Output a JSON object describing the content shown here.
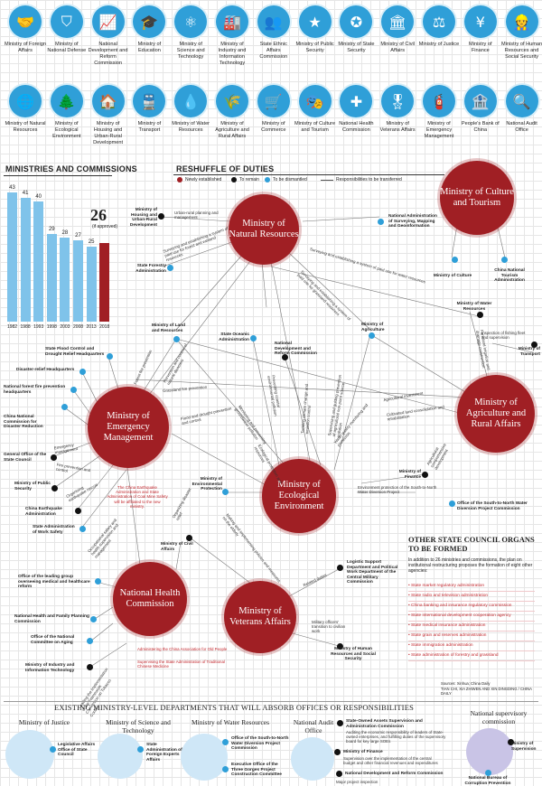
{
  "icons_row1": [
    {
      "label": "Ministry of Foreign Affairs",
      "icon": "handshake-icon",
      "glyph": "🤝"
    },
    {
      "label": "Ministry of National Defense",
      "icon": "shield-icon",
      "glyph": "⛉"
    },
    {
      "label": "National Development and Reform Commission",
      "icon": "growth-chart-icon",
      "glyph": "📈"
    },
    {
      "label": "Ministry of Education",
      "icon": "graduation-cap-icon",
      "glyph": "🎓"
    },
    {
      "label": "Ministry of Science and Technology",
      "icon": "atom-icon",
      "glyph": "⚛"
    },
    {
      "label": "Ministry of Industry and Information Technology",
      "icon": "factory-icon",
      "glyph": "🏭"
    },
    {
      "label": "State Ethnic Affairs Commission",
      "icon": "people-icon",
      "glyph": "👥"
    },
    {
      "label": "Ministry of Public Security",
      "icon": "police-badge-icon",
      "glyph": "★"
    },
    {
      "label": "Ministry of State Security",
      "icon": "security-badge-icon",
      "glyph": "✪"
    },
    {
      "label": "Ministry of Civil Affairs",
      "icon": "building-icon",
      "glyph": "🏛"
    },
    {
      "label": "Ministry of Justice",
      "icon": "scales-icon",
      "glyph": "⚖"
    },
    {
      "label": "Ministry of Finance",
      "icon": "yuan-icon",
      "glyph": "¥"
    },
    {
      "label": "Ministry of Human Resources and Social Security",
      "icon": "worker-icon",
      "glyph": "👷"
    }
  ],
  "icons_row2": [
    {
      "label": "Ministry of Natural Resources",
      "icon": "globe-icon",
      "glyph": "🌐"
    },
    {
      "label": "Ministry of Ecological Environment",
      "icon": "tree-icon",
      "glyph": "🌲"
    },
    {
      "label": "Ministry of Housing and Urban-Rural Development",
      "icon": "house-icon",
      "glyph": "🏠"
    },
    {
      "label": "Ministry of Transport",
      "icon": "train-icon",
      "glyph": "🚆"
    },
    {
      "label": "Ministry of Water Resources",
      "icon": "water-drop-icon",
      "glyph": "💧"
    },
    {
      "label": "Ministry of Agriculture and Rural Affairs",
      "icon": "wheat-icon",
      "glyph": "🌾"
    },
    {
      "label": "Ministry of Commerce",
      "icon": "cart-icon",
      "glyph": "🛒"
    },
    {
      "label": "Ministry of Culture and Tourism",
      "icon": "theater-icon",
      "glyph": "🎭"
    },
    {
      "label": "National Health Commission",
      "icon": "medical-cross-icon",
      "glyph": "✚"
    },
    {
      "label": "Ministry of Veterans Affairs",
      "icon": "medal-icon",
      "glyph": "🎖"
    },
    {
      "label": "Ministry of Emergency Management",
      "icon": "firefighter-icon",
      "glyph": "🧯"
    },
    {
      "label": "People's Bank of China",
      "icon": "bank-icon",
      "glyph": "🏦"
    },
    {
      "label": "National Audit Office",
      "icon": "magnifier-icon",
      "glyph": "🔍"
    }
  ],
  "ministries_section": {
    "title": "MINISTRIES AND COMMISSIONS",
    "approved_value": "26",
    "approved_note": "(if approved)"
  },
  "chart_data": {
    "type": "bar",
    "title": "MINISTRIES AND COMMISSIONS",
    "categories": [
      "1982",
      "1988",
      "1993",
      "1998",
      "2003",
      "2008",
      "2013",
      "2018"
    ],
    "values": [
      43,
      41,
      40,
      29,
      28,
      27,
      25,
      26
    ],
    "ylim": [
      0,
      45
    ],
    "colors": {
      "past": "#7fc3ea",
      "current": "#a01f24"
    }
  },
  "reshuffle": {
    "title": "RESHUFFLE OF DUTIES",
    "legend": [
      {
        "label": "Newly established",
        "color": "#a01f24"
      },
      {
        "label": "To remain",
        "color": "#111111"
      },
      {
        "label": "To be dismantled",
        "color": "#2f9fd8"
      },
      {
        "label": "Responsibilities to be transferred",
        "color": "#555555"
      }
    ]
  },
  "big_nodes": {
    "natural": "Ministry of Natural Resources",
    "culture": "Ministry of Culture and Tourism",
    "emergency": "Ministry of Emergency Management",
    "ecological": "Ministry of Ecological Environment",
    "agriculture": "Ministry of Agriculture and Rural Affairs",
    "health": "National Health Commission",
    "veterans": "Ministry of Veterans Affairs"
  },
  "agencies": {
    "housing": "Ministry of Housing and Urban-Rural Development",
    "forestry": "State Forestry Administration",
    "surveying": "National Administration of Surveying, Mapping and Geoinformation",
    "culture_min": "Ministry of Culture",
    "tourism": "China National Tourism Administration",
    "water": "Ministry of Water Resources",
    "land": "Ministry of Land and Resources",
    "oceanic": "State Oceanic Administration",
    "ndrc": "National Development and Reform Commission",
    "agri": "Ministry of Agriculture",
    "transport": "Ministry of Transport",
    "flood": "State Flood Control and Drought Relief Headquarters",
    "disaster": "Disaster-relief Headquarters",
    "forest_fire": "National forest fire prevention headquarters",
    "disaster_reduction": "China National Commission for Disaster Reduction",
    "general_office": "General Office of the State Council",
    "public_security": "Ministry of Public Security",
    "earthquake": "China Earthquake Administration",
    "work_safety": "State Administration of Work Safety",
    "env_protection": "Ministry of Environmental Protection",
    "civil": "Ministry of Civil Affairs",
    "finance": "Ministry of Finance",
    "south_north": "Office of the South-to-North Water Diversion Project Commission",
    "healthcare_reform": "Office of the leading group overseeing medical and healthcare reform",
    "health_family": "National Health and Family Planning Commission",
    "aging": "Office of the National Committee on Aging",
    "miit": "Ministry of Industry and Information Technology",
    "logistic": "Logistic Support Department and Political Work Department of the Central Military Commission",
    "mohrss": "Ministry of Human Resources and Social Security"
  },
  "duties": {
    "d1": "Urban-rural planning and management",
    "d2": "Surveying and establishing a system of paid use for forest and wetland resources",
    "d3": "Surveying and establishing a system of paid use for water resources",
    "d4": "Surveying and establishing a system of paid use for grassland resources",
    "d5": "Inspection of fishing fleet and supervision",
    "d6": "Farmland irrigation and drainage construction",
    "d7": "Forest fire prevention",
    "d8": "Prevention and control of natural disasters",
    "d9": "Grassland fire prevention",
    "d10": "Flood and drought prevention and control",
    "d11": "Monitoring and preventing groundwater pollution",
    "d12": "Preventing coastal environmental pollution",
    "d13": "Tackling climate change and emission control",
    "d14": "Supervising and guiding prevention of agricultural non-point source pollution",
    "d15": "Agricultural investment",
    "d16": "Cultivated land consolidation and rehabilitation",
    "d17": "Water quality monitoring and protection",
    "d18": "Agricultural comprehensive development",
    "d19": "Environment protection of the South-to-North Water Diversion Project",
    "d20": "Emergency management",
    "d21": "Fire prevention and control",
    "d22": "Organizing earthquake rescue",
    "d23": "Organizing disaster relief",
    "d24": "Occupational safety and health supervision and management",
    "d25": "The China Earthquake Administration and State Administration of Coal Mine Safety will be affiliated to the new ministry.",
    "d26": "Making and implementing policies and measures on the elderly",
    "d27": "Leading the implementation of the Framework Convention on Tobacco Control",
    "d28": "Administering the China Association for Old People",
    "d29": "Supervising the State Administration of Traditional Chinese Medicine",
    "d30": "Related duties",
    "d31": "Military officers' transition to civilian work",
    "d32": "Ecological protection and resources"
  },
  "other_organs": {
    "title": "OTHER STATE COUNCIL ORGANS TO BE FORMED",
    "intro": "In addition to 26 ministries and commissions, the plan on institutional restructuring proposes the formation of eight other agencies:",
    "items": [
      "State market regulatory administration",
      "State radio and television administration",
      "China banking and insurance regulatory commission",
      "State international development cooperation agency",
      "State medical insurance administration",
      "State grain and reserves administration",
      "State immigration administration",
      "State administration of forestry and grassland"
    ]
  },
  "sources": {
    "line1": "Sources: Xinhua; China Daily",
    "line2": "TIAN CHI, XIA ZHIWEN AND XIN DINGDING / CHINA DAILY"
  },
  "bottom": {
    "title": "EXISTING MINISTRY-LEVEL DEPARTMENTS THAT WILL ABSORB OFFICES OR RESPONSIBILITIES",
    "justice": {
      "title": "Ministry of Justice",
      "item": "Legislative Affairs Office of State Council"
    },
    "science": {
      "title": "Ministry of Science and Technology",
      "item": "State Administration of Foreign Experts Affairs"
    },
    "water": {
      "title": "Ministry of Water Resources",
      "item1": "Office of the South-to-North Water Diversion Project Commission",
      "item2": "Executive Office of the Three Gorges Project Construction Committee"
    },
    "audit": {
      "title": "National Audit Office",
      "item1": "State-Owned Assets Supervision and Administration Commission",
      "item1_desc": "Auditing the economic responsibility of leaders of State-owned enterprises, and fulfilling duties of the supervisory board for key large SOEs",
      "item2": "Ministry of Finance",
      "item2_desc": "Supervision over the implementation of the central budget and other financial revenues and expenditures",
      "item3": "National Development and Reform Commission",
      "item3_desc": "Major project inspection"
    },
    "supervisory": {
      "title": "National supervisory commission",
      "item1": "Ministry of Supervision",
      "item2": "National Bureau of Corruption Prevention"
    }
  }
}
